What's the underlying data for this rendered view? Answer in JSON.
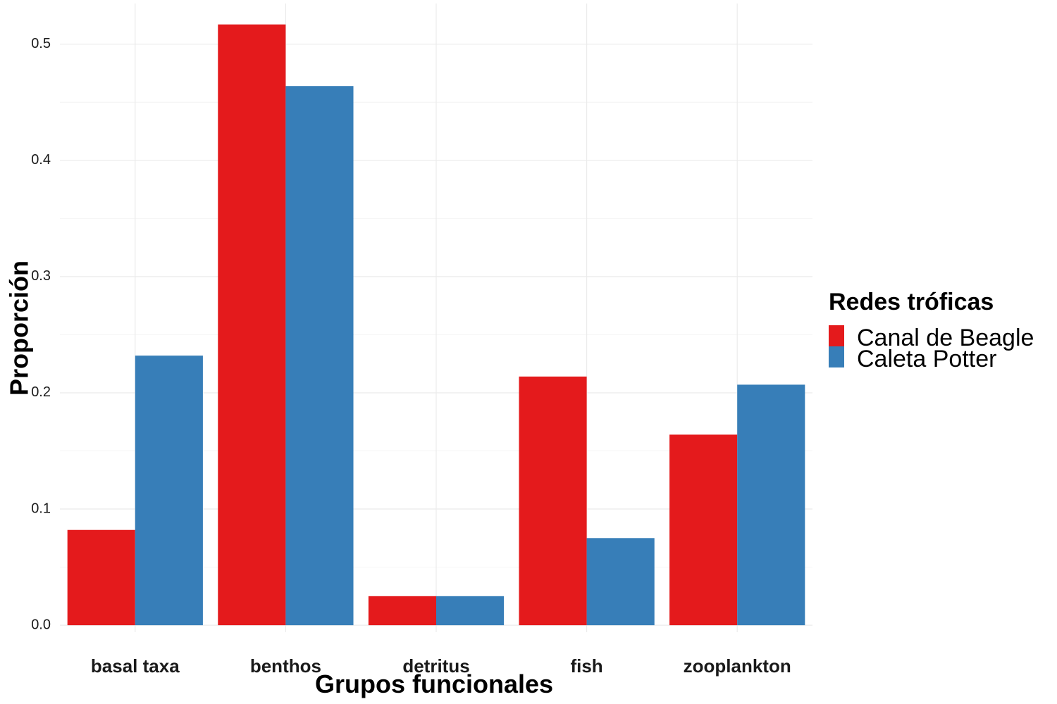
{
  "chart_data": {
    "type": "bar",
    "xlabel": "Grupos funcionales",
    "ylabel": "Proporción",
    "categories": [
      "basal taxa",
      "benthos",
      "detritus",
      "fish",
      "zooplankton"
    ],
    "series": [
      {
        "name": "Canal de Beagle",
        "color": "#e41a1c",
        "values": [
          0.082,
          0.517,
          0.025,
          0.214,
          0.164
        ]
      },
      {
        "name": "Caleta Potter",
        "color": "#377eb8",
        "values": [
          0.232,
          0.464,
          0.025,
          0.075,
          0.207
        ]
      }
    ],
    "ylim": [
      -0.006,
      0.535
    ],
    "yticks": [
      "0.0",
      "0.1",
      "0.2",
      "0.3",
      "0.4",
      "0.5"
    ],
    "grid": true,
    "legend": {
      "title": "Redes tróficas",
      "position": "right"
    }
  }
}
